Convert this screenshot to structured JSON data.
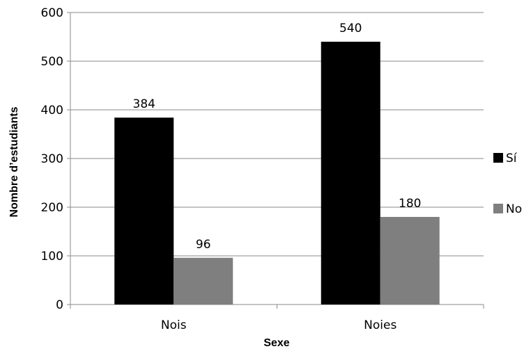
{
  "chart_data": {
    "type": "bar",
    "categories": [
      "Nois",
      "Noies"
    ],
    "series": [
      {
        "name": "Sí",
        "values": [
          384,
          540
        ],
        "color": "#000000"
      },
      {
        "name": "No",
        "values": [
          96,
          180
        ],
        "color": "#7f7f7f"
      }
    ],
    "xlabel": "Sexe",
    "ylabel": "Nombre d’estudiants",
    "ylim": [
      0,
      600
    ],
    "yticks": [
      0,
      100,
      200,
      300,
      400,
      500,
      600
    ],
    "grid": true,
    "legend": "right",
    "data_labels": true
  }
}
